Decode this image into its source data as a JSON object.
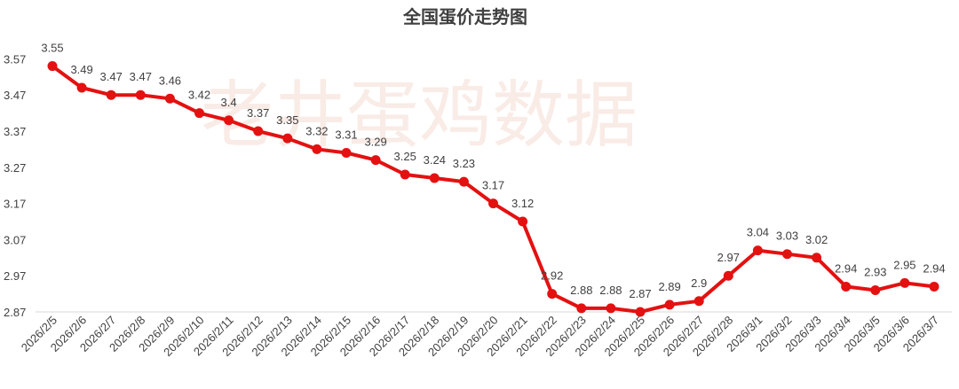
{
  "watermark_text": "老井蛋鸡数据",
  "colors": {
    "series": "#e41111",
    "axis": "#d9d9d9",
    "text": "#404040",
    "watermark": "#f0c8b8"
  },
  "chart_data": {
    "type": "line",
    "title": "全国蛋价走势图",
    "xlabel": "",
    "ylabel": "",
    "ylim": [
      2.87,
      3.62
    ],
    "yticks": [
      2.87,
      2.97,
      3.07,
      3.17,
      3.27,
      3.37,
      3.47,
      3.57
    ],
    "ytick_labels": [
      "2.87",
      "2.97",
      "3.07",
      "3.17",
      "3.27",
      "3.37",
      "3.47",
      "3.57"
    ],
    "grid": false,
    "legend": "none",
    "categories": [
      "2026/2/5",
      "2026/2/6",
      "2026/2/7",
      "2026/2/8",
      "2026/2/9",
      "2026/2/10",
      "2026/2/11",
      "2026/2/12",
      "2026/2/13",
      "2026/2/14",
      "2026/2/15",
      "2026/2/16",
      "2026/2/17",
      "2026/2/18",
      "2026/2/19",
      "2026/2/20",
      "2026/2/21",
      "2026/2/22",
      "2026/2/23",
      "2026/2/24",
      "2026/2/25",
      "2026/2/26",
      "2026/2/27",
      "2026/2/28",
      "2026/3/1",
      "2026/3/2",
      "2026/3/3",
      "2026/3/4",
      "2026/3/5",
      "2026/3/6",
      "2026/3/7"
    ],
    "series": [
      {
        "values": [
          3.55,
          3.49,
          3.47,
          3.47,
          3.46,
          3.42,
          3.4,
          3.37,
          3.35,
          3.32,
          3.31,
          3.29,
          3.25,
          3.24,
          3.23,
          3.17,
          3.12,
          2.92,
          2.88,
          2.88,
          2.87,
          2.89,
          2.9,
          2.97,
          3.04,
          3.03,
          3.02,
          2.94,
          2.93,
          2.95,
          2.94
        ],
        "labels": [
          "3.55",
          "3.49",
          "3.47",
          "3.47",
          "3.46",
          "3.42",
          "3.4",
          "3.37",
          "3.35",
          "3.32",
          "3.31",
          "3.29",
          "3.25",
          "3.24",
          "3.23",
          "3.17",
          "3.12",
          "2.92",
          "2.88",
          "2.88",
          "2.87",
          "2.89",
          "2.9",
          "2.97",
          "3.04",
          "3.03",
          "3.02",
          "2.94",
          "2.93",
          "2.95",
          "2.94"
        ],
        "color": "#e41111"
      }
    ]
  }
}
